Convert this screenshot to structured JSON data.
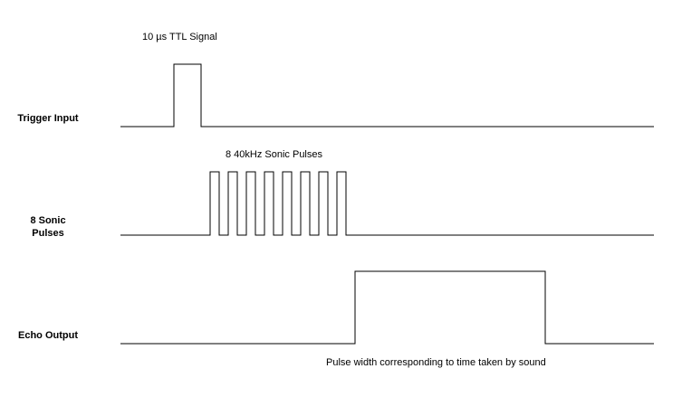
{
  "rows": {
    "trigger_label": "Trigger Input",
    "sonic_label": "8 Sonic\nPulses",
    "echo_label": "Echo Output"
  },
  "annotations": {
    "trigger": "10 µs TTL Signal",
    "sonic": "8 40kHz Sonic Pulses",
    "echo": "Pulse width corresponding to time taken by sound"
  },
  "signals": {
    "sonic_pulse_count": 8
  },
  "colors": {
    "line": "#000000",
    "background": "#ffffff"
  }
}
